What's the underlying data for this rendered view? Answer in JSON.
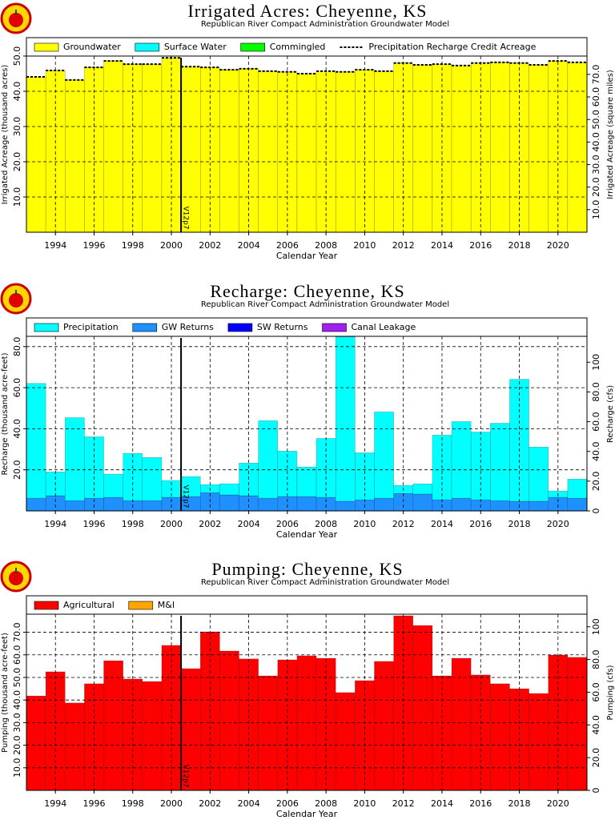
{
  "chart_data": [
    {
      "type": "bar",
      "stacked": true,
      "title": "Irrigated Acres: Cheyenne, KS",
      "subtitle": "Republican River Compact Administration Groundwater Model",
      "xlabel": "Calendar Year",
      "ylabel": "Irrigated Acreage (thousand acres)",
      "y2label": "Irrigated Acreage (square miles)",
      "x": [
        1993,
        1994,
        1995,
        1996,
        1997,
        1998,
        1999,
        2000,
        2001,
        2002,
        2003,
        2004,
        2005,
        2006,
        2007,
        2008,
        2009,
        2010,
        2011,
        2012,
        2013,
        2014,
        2015,
        2016,
        2017,
        2018,
        2019,
        2020,
        2021
      ],
      "xlim": [
        1992.5,
        2021.5
      ],
      "xticks": [
        1994,
        1996,
        1998,
        2000,
        2002,
        2004,
        2006,
        2008,
        2010,
        2012,
        2014,
        2016,
        2018,
        2020
      ],
      "ylim": [
        0,
        50
      ],
      "yticks": [
        {
          "value": 10,
          "label": "10.0"
        },
        {
          "value": 20,
          "label": "20.0"
        },
        {
          "value": 30,
          "label": "30.0"
        },
        {
          "value": 40,
          "label": "40.0"
        },
        {
          "value": 50,
          "label": "50.0"
        }
      ],
      "y2lim": [
        0,
        78.125
      ],
      "y2ticks": [
        {
          "value": 10,
          "label": "10.0"
        },
        {
          "value": 20,
          "label": "20.0"
        },
        {
          "value": 30,
          "label": "30.0"
        },
        {
          "value": 40,
          "label": "40.0"
        },
        {
          "value": 50,
          "label": "50.0"
        },
        {
          "value": 60,
          "label": "60.0"
        },
        {
          "value": 70,
          "label": "70.0"
        }
      ],
      "grid": true,
      "series": [
        {
          "name": "Groundwater",
          "color": "#ffff00",
          "values": [
            44.1,
            45.9,
            43.2,
            46.8,
            48.6,
            47.7,
            47.7,
            49.5,
            47.0,
            46.8,
            46.1,
            46.4,
            45.7,
            45.5,
            45.0,
            45.7,
            45.5,
            46.1,
            45.7,
            48.0,
            47.5,
            47.7,
            47.3,
            48.0,
            48.2,
            48.0,
            47.5,
            48.6,
            48.2
          ]
        },
        {
          "name": "Surface Water",
          "color": "#00ffff",
          "values": [
            0,
            0,
            0,
            0,
            0,
            0,
            0,
            0,
            0,
            0,
            0,
            0,
            0,
            0,
            0,
            0,
            0,
            0,
            0,
            0,
            0,
            0,
            0,
            0,
            0,
            0,
            0,
            0,
            0
          ]
        },
        {
          "name": "Commingled",
          "color": "#00ff00",
          "values": [
            0,
            0,
            0,
            0,
            0,
            0,
            0,
            0,
            0,
            0,
            0,
            0,
            0,
            0,
            0,
            0,
            0,
            0,
            0,
            0,
            0,
            0,
            0,
            0,
            0,
            0,
            0,
            0,
            0
          ]
        },
        {
          "name": "Precipitation Recharge Credit Acreage",
          "type": "line",
          "linestyle": "dashed",
          "color": "#000000",
          "values": [
            44.1,
            45.9,
            43.2,
            46.8,
            48.6,
            47.7,
            47.7,
            49.5,
            47.0,
            46.8,
            46.1,
            46.4,
            45.7,
            45.5,
            45.0,
            45.7,
            45.5,
            46.1,
            45.7,
            48.0,
            47.5,
            47.7,
            47.3,
            48.0,
            48.2,
            48.0,
            47.5,
            48.6,
            48.2
          ]
        }
      ],
      "annotations": [
        {
          "text": "V12p7",
          "x": 2000.5
        }
      ]
    },
    {
      "type": "bar",
      "stacked": true,
      "title": "Recharge: Cheyenne, KS",
      "subtitle": "Republican River Compact Administration Groundwater Model",
      "xlabel": "Calendar Year",
      "ylabel": "Recharge (thousand acre-feet)",
      "y2label": "Recharge (cfs)",
      "x": [
        1993,
        1994,
        1995,
        1996,
        1997,
        1998,
        1999,
        2000,
        2001,
        2002,
        2003,
        2004,
        2005,
        2006,
        2007,
        2008,
        2009,
        2010,
        2011,
        2012,
        2013,
        2014,
        2015,
        2016,
        2017,
        2018,
        2019,
        2020,
        2021
      ],
      "xlim": [
        1992.5,
        2021.5
      ],
      "xticks": [
        1994,
        1996,
        1998,
        2000,
        2002,
        2004,
        2006,
        2008,
        2010,
        2012,
        2014,
        2016,
        2018,
        2020
      ],
      "ylim": [
        0,
        85
      ],
      "yticks": [
        {
          "value": 20,
          "label": "20.0"
        },
        {
          "value": 40,
          "label": "40.0"
        },
        {
          "value": 60,
          "label": "60.0"
        },
        {
          "value": 80,
          "label": "80.0"
        }
      ],
      "y2lim": [
        0,
        117.4
      ],
      "y2ticks": [
        0,
        {
          "value": 20,
          "label": "20.0"
        },
        {
          "value": 40,
          "label": "40.0"
        },
        {
          "value": 60,
          "label": "60.0"
        },
        {
          "value": 80,
          "label": "80.0"
        },
        100
      ],
      "grid": true,
      "series": [
        {
          "name": "Precipitation",
          "color": "#00ffff",
          "values": [
            55.9,
            11.6,
            40.4,
            29.9,
            11.3,
            23.0,
            21.0,
            8.2,
            9.7,
            3.9,
            5.4,
            15.9,
            37.7,
            22.1,
            14.4,
            28.7,
            80.0,
            22.9,
            42.0,
            3.9,
            5.0,
            31.5,
            37.3,
            33.0,
            37.7,
            59.4,
            26.4,
            3.1,
            9.3
          ]
        },
        {
          "name": "GW Returns",
          "color": "#1e90ff",
          "values": [
            6.2,
            7.4,
            5.0,
            6.2,
            6.6,
            5.0,
            5.0,
            6.6,
            7.0,
            8.9,
            7.8,
            7.4,
            6.2,
            7.0,
            7.0,
            6.6,
            4.7,
            5.4,
            6.2,
            8.5,
            8.2,
            5.4,
            6.2,
            5.4,
            5.0,
            4.7,
            4.7,
            6.6,
            6.2
          ]
        },
        {
          "name": "SW Returns",
          "color": "#0000ff",
          "values": [
            0,
            0,
            0,
            0,
            0,
            0,
            0,
            0,
            0,
            0,
            0,
            0,
            0,
            0,
            0,
            0,
            0,
            0,
            0,
            0,
            0,
            0,
            0,
            0,
            0,
            0,
            0,
            0,
            0
          ]
        },
        {
          "name": "Canal Leakage",
          "color": "#a020f0",
          "values": [
            0,
            0,
            0,
            0,
            0,
            0,
            0,
            0,
            0,
            0,
            0,
            0,
            0,
            0,
            0,
            0,
            0,
            0,
            0,
            0,
            0,
            0,
            0,
            0,
            0,
            0,
            0,
            0,
            0
          ]
        }
      ],
      "annotations": [
        {
          "text": "V12p7",
          "x": 2000.5
        }
      ]
    },
    {
      "type": "bar",
      "stacked": true,
      "title": "Pumping: Cheyenne, KS",
      "subtitle": "Republican River Compact Administration Groundwater Model",
      "xlabel": "Calendar Year",
      "ylabel": "Pumping (thousand acre-feet)",
      "y2label": "Pumping (cfs)",
      "x": [
        1993,
        1994,
        1995,
        1996,
        1997,
        1998,
        1999,
        2000,
        2001,
        2002,
        2003,
        2004,
        2005,
        2006,
        2007,
        2008,
        2009,
        2010,
        2011,
        2012,
        2013,
        2014,
        2015,
        2016,
        2017,
        2018,
        2019,
        2020,
        2021
      ],
      "xlim": [
        1992.5,
        2021.5
      ],
      "xticks": [
        1994,
        1996,
        1998,
        2000,
        2002,
        2004,
        2006,
        2008,
        2010,
        2012,
        2014,
        2016,
        2018,
        2020
      ],
      "ylim": [
        0,
        78
      ],
      "yticks": [
        {
          "value": 10,
          "label": "10.0"
        },
        {
          "value": 20,
          "label": "20.0"
        },
        {
          "value": 30,
          "label": "30.0"
        },
        {
          "value": 40,
          "label": "40.0"
        },
        {
          "value": 50,
          "label": "50.0"
        },
        {
          "value": 60,
          "label": "60.0"
        },
        {
          "value": 70,
          "label": "70.0"
        }
      ],
      "y2lim": [
        0,
        107.7
      ],
      "y2ticks": [
        0,
        {
          "value": 20,
          "label": "20.0"
        },
        {
          "value": 40,
          "label": "40.0"
        },
        {
          "value": 60,
          "label": "60.0"
        },
        {
          "value": 80,
          "label": "80.0"
        },
        100
      ],
      "grid": true,
      "series": [
        {
          "name": "Agricultural",
          "color": "#ff0000",
          "values": [
            41.8,
            52.5,
            38.7,
            47.2,
            57.4,
            49.3,
            48.2,
            64.2,
            53.9,
            70.2,
            61.7,
            58.2,
            50.7,
            57.8,
            59.6,
            58.5,
            43.3,
            48.6,
            57.1,
            77.3,
            73.0,
            50.7,
            58.5,
            51.1,
            47.2,
            45.0,
            42.9,
            59.9,
            58.9
          ]
        },
        {
          "name": "M&I",
          "color": "#ffa500",
          "values": [
            0,
            0,
            0,
            0,
            0,
            0,
            0,
            0,
            0,
            0,
            0,
            0,
            0,
            0,
            0,
            0,
            0,
            0,
            0,
            0,
            0,
            0,
            0,
            0,
            0,
            0,
            0,
            0,
            0
          ]
        }
      ],
      "annotations": [
        {
          "text": "V12p7",
          "x": 2000.5
        }
      ]
    }
  ]
}
